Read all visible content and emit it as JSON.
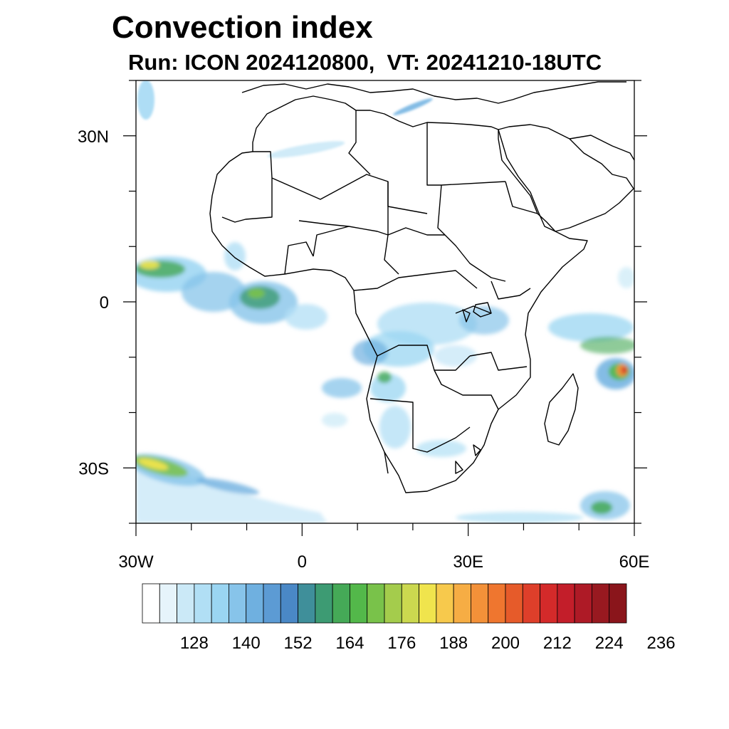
{
  "header": {
    "title": "Convection index",
    "subtitle": "Run: ICON 2024120800,  VT: 20241210-18UTC"
  },
  "map": {
    "lon_range": [
      -30,
      60
    ],
    "lat_range": [
      -40,
      40
    ],
    "lon_ticks": [
      {
        "value": -30,
        "label": "30W"
      },
      {
        "value": 0,
        "label": "0"
      },
      {
        "value": 30,
        "label": "30E"
      },
      {
        "value": 60,
        "label": "60E"
      }
    ],
    "lat_ticks": [
      {
        "value": 30,
        "label": "30N"
      },
      {
        "value": 0,
        "label": "0"
      },
      {
        "value": -30,
        "label": "30S"
      }
    ],
    "boundary_color": "#000000"
  },
  "colorbar": {
    "colors": [
      "#ffffff",
      "#e6f4fb",
      "#cbe9f7",
      "#b1dff5",
      "#9ad5f2",
      "#87c4ea",
      "#6fb0e0",
      "#5c9bd4",
      "#4a88c6",
      "#3f8f9a",
      "#3d9b73",
      "#45a957",
      "#53b84a",
      "#79c24a",
      "#a4cc4c",
      "#cbd84f",
      "#f0e44d",
      "#f7c94c",
      "#f6ad44",
      "#f39139",
      "#ef762f",
      "#e65b2a",
      "#de3f2a",
      "#d42a2a",
      "#c31e2a",
      "#ae1a26",
      "#981920",
      "#8a151b"
    ],
    "labels": [
      "128",
      "140",
      "152",
      "164",
      "176",
      "188",
      "200",
      "212",
      "224",
      "236"
    ]
  }
}
